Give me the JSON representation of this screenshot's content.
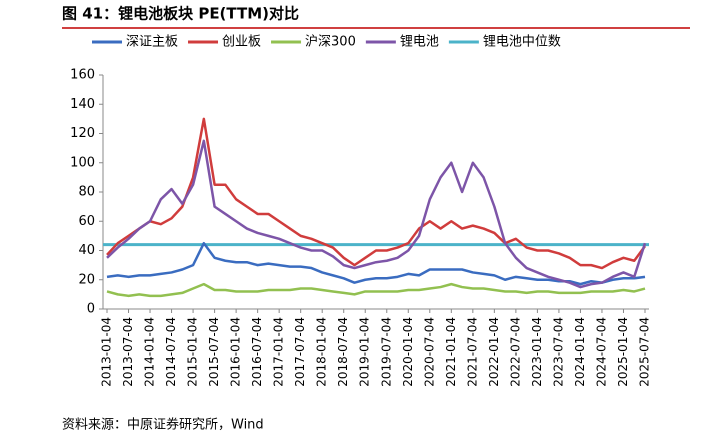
{
  "chart_data": {
    "type": "line",
    "title": "图 41：锂电池板块 PE(TTM)对比",
    "source": "资料来源：中原证券研究所，Wind",
    "x": [
      "2013-01-04",
      "2013-04-04",
      "2013-07-04",
      "2013-10-04",
      "2014-01-04",
      "2014-04-04",
      "2014-07-04",
      "2014-10-04",
      "2015-01-04",
      "2015-04-04",
      "2015-07-04",
      "2015-10-04",
      "2016-01-04",
      "2016-04-04",
      "2016-07-04",
      "2016-10-04",
      "2017-01-04",
      "2017-04-04",
      "2017-07-04",
      "2017-10-04",
      "2018-01-04",
      "2018-04-04",
      "2018-07-04",
      "2018-10-04",
      "2019-01-04",
      "2019-04-04",
      "2019-07-04",
      "2019-10-04",
      "2020-01-04",
      "2020-04-04",
      "2020-07-04",
      "2020-10-04",
      "2021-01-04",
      "2021-04-04",
      "2021-07-04",
      "2021-10-04",
      "2022-01-04",
      "2022-04-04",
      "2022-07-04",
      "2022-10-04",
      "2023-01-04",
      "2023-04-04",
      "2023-07-04",
      "2023-10-04",
      "2024-01-04",
      "2024-04-04",
      "2024-07-04",
      "2024-10-04",
      "2025-01-04",
      "2025-04-04",
      "2025-07-04"
    ],
    "xticks": [
      "2013-01-04",
      "2013-07-04",
      "2014-01-04",
      "2014-07-04",
      "2015-01-04",
      "2015-07-04",
      "2016-01-04",
      "2016-07-04",
      "2017-01-04",
      "2017-07-04",
      "2018-01-04",
      "2018-07-04",
      "2019-01-04",
      "2019-07-04",
      "2020-01-04",
      "2020-07-04",
      "2021-01-04",
      "2021-07-04",
      "2022-01-04",
      "2022-07-04",
      "2023-01-04",
      "2023-07-04",
      "2024-01-04",
      "2024-07-04",
      "2025-01-04",
      "2025-07-04"
    ],
    "ylim": [
      0,
      160
    ],
    "yticks": [
      0,
      20,
      40,
      60,
      80,
      100,
      120,
      140,
      160
    ],
    "series": [
      {
        "name": "深证主板",
        "color": "#3a6cc0",
        "values": [
          22,
          23,
          22,
          23,
          23,
          24,
          25,
          27,
          30,
          45,
          35,
          33,
          32,
          32,
          30,
          31,
          30,
          29,
          29,
          28,
          25,
          23,
          21,
          18,
          20,
          21,
          21,
          22,
          24,
          23,
          27,
          27,
          27,
          27,
          25,
          24,
          23,
          20,
          22,
          21,
          20,
          20,
          19,
          19,
          17,
          19,
          18,
          20,
          21,
          21,
          22
        ]
      },
      {
        "name": "创业板",
        "color": "#d03c3c",
        "values": [
          37,
          45,
          50,
          55,
          60,
          58,
          62,
          70,
          90,
          130,
          85,
          85,
          75,
          70,
          65,
          65,
          60,
          55,
          50,
          48,
          45,
          42,
          35,
          30,
          35,
          40,
          40,
          42,
          45,
          55,
          60,
          55,
          60,
          55,
          57,
          55,
          52,
          45,
          48,
          42,
          40,
          40,
          38,
          35,
          30,
          30,
          28,
          32,
          35,
          33,
          43
        ]
      },
      {
        "name": "沪深300",
        "color": "#92c050",
        "values": [
          12,
          10,
          9,
          10,
          9,
          9,
          10,
          11,
          14,
          17,
          13,
          13,
          12,
          12,
          12,
          13,
          13,
          13,
          14,
          14,
          13,
          12,
          11,
          10,
          12,
          12,
          12,
          12,
          13,
          13,
          14,
          15,
          17,
          15,
          14,
          14,
          13,
          12,
          12,
          11,
          12,
          12,
          11,
          11,
          11,
          12,
          12,
          12,
          13,
          12,
          14
        ]
      },
      {
        "name": "锂电池",
        "color": "#7d55a8",
        "values": [
          35,
          42,
          48,
          55,
          60,
          75,
          82,
          72,
          85,
          115,
          70,
          65,
          60,
          55,
          52,
          50,
          48,
          45,
          42,
          40,
          40,
          36,
          30,
          28,
          30,
          32,
          33,
          35,
          40,
          50,
          75,
          90,
          100,
          80,
          100,
          90,
          70,
          45,
          35,
          28,
          25,
          22,
          20,
          18,
          15,
          17,
          18,
          22,
          25,
          22,
          45
        ]
      }
    ],
    "hline": {
      "name": "锂电池中位数",
      "color": "#4bb3c9",
      "value": 44
    }
  }
}
